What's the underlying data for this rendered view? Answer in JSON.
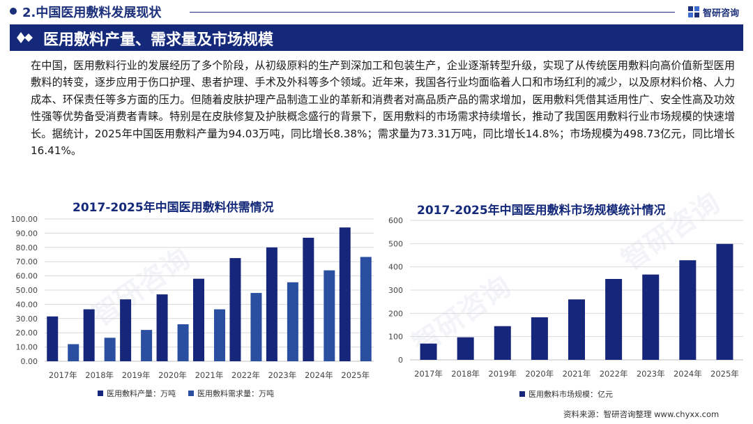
{
  "header": {
    "section_title": "2.中国医用敷料发展现状",
    "brand_name": "智研咨询"
  },
  "banner": {
    "title": "医用敷料产量、需求量及市场规模"
  },
  "body_text": "在中国，医用敷料行业的发展经历了多个阶段，从初级原料的生产到深加工和包装生产，企业逐渐转型升级，实现了从传统医用敷料向高价值新型医用敷料的转变，逐步应用于伤口护理、患者护理、手术及外科等多个领域。近年来，我国各行业均面临着人口和市场红利的减少，以及原材料价格、人力成本、环保责任等多方面的压力。但随着皮肤护理产品制造工业的革新和消费者对高品质产品的需求增加，医用敷料凭借其适用性广、安全性高及功效性强等优势备受消费者青睐。特别是在皮肤修复及护肤概念盛行的背景下，医用敷料的市场需求持续增长，推动了我国医用敷料行业市场规模的快速增长。据统计，2025年中国医用敷料产量为94.03万吨，同比增长8.38%；需求量为73.31万吨，同比增长14.8%；市场规模为498.73亿元，同比增长16.41%。",
  "source": "资料来源：智研咨询整理    www.chyxx.com",
  "colors": {
    "navy": "#14297a",
    "series_dark": "#16267a",
    "series_light": "#2a4ea0"
  },
  "chart_data": [
    {
      "type": "bar",
      "title": "2017-2025年中国医用敷料供需情况",
      "categories": [
        "2017年",
        "2018年",
        "2019年",
        "2020年",
        "2021年",
        "2022年",
        "2023年",
        "2024年",
        "2025年"
      ],
      "ylim": [
        0,
        100
      ],
      "yticks": [
        "0.00",
        "10.00",
        "20.00",
        "30.00",
        "40.00",
        "50.00",
        "60.00",
        "70.00",
        "80.00",
        "90.00",
        "100.00"
      ],
      "grid": true,
      "legend": "bottom",
      "series": [
        {
          "name": "医用敷料产量：万吨",
          "color": "#16267a",
          "values": [
            31.5,
            36.5,
            43.5,
            47.0,
            58.0,
            72.5,
            80.0,
            86.8,
            94.03
          ]
        },
        {
          "name": "医用敷料需求量：万吨",
          "color": "#2a4ea0",
          "values": [
            12.0,
            16.5,
            22.0,
            26.0,
            36.5,
            48.0,
            55.5,
            63.9,
            73.31
          ]
        }
      ]
    },
    {
      "type": "bar",
      "title": "2017-2025年中国医用敷料市场规模统计情况",
      "categories": [
        "2017年",
        "2018年",
        "2019年",
        "2020年",
        "2021年",
        "2022年",
        "2023年",
        "2024年",
        "2025年"
      ],
      "ylim": [
        0,
        600
      ],
      "yticks": [
        "0",
        "100",
        "200",
        "300",
        "400",
        "500",
        "600"
      ],
      "grid": true,
      "legend": "bottom",
      "series": [
        {
          "name": "医用敷料市场规模：亿元",
          "color": "#16267a",
          "values": [
            70,
            97,
            145,
            183,
            260,
            348,
            367,
            428.4,
            498.73
          ]
        }
      ]
    }
  ]
}
